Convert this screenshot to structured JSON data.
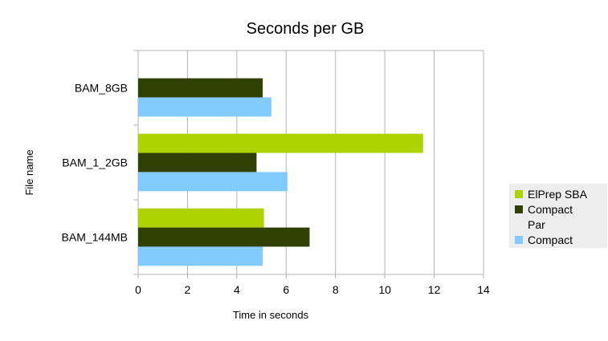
{
  "chart_data": {
    "type": "bar",
    "orientation": "horizontal",
    "title": "Seconds per GB",
    "xlabel": "Time in seconds",
    "ylabel": "File name",
    "xlim": [
      0,
      14
    ],
    "xticks": [
      "0",
      "2",
      "4",
      "6",
      "8",
      "10",
      "12",
      "14"
    ],
    "grid": true,
    "legend_position": "right",
    "categories": [
      "BAM_8GB",
      "BAM_1_2GB",
      "BAM_144MB"
    ],
    "series": [
      {
        "name": "ElPrep SBA",
        "color": "#aed300",
        "values": [
          null,
          11.55,
          5.1
        ]
      },
      {
        "name": "Compact Par",
        "color": "#314004",
        "values": [
          5.05,
          4.8,
          6.95
        ]
      },
      {
        "name": "Compact",
        "color": "#83caff",
        "values": [
          5.4,
          6.05,
          5.05
        ]
      }
    ]
  }
}
